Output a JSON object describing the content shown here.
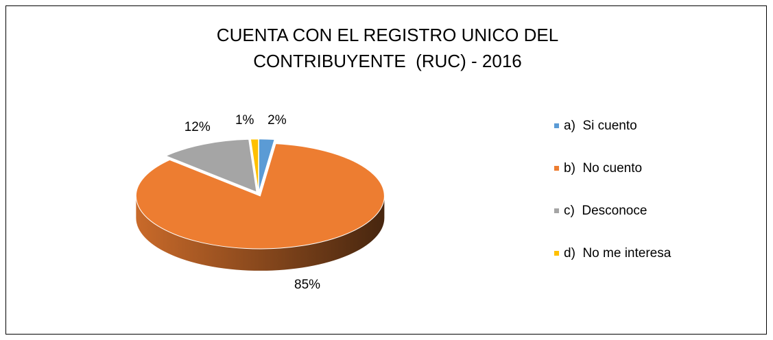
{
  "chart_data": {
    "type": "pie3d",
    "title": "CUENTA CON EL REGISTRO UNICO DEL CONTRIBUYENTE  (RUC) - 2016",
    "categories": [
      "a)  Si cuento",
      "b)  No cuento",
      "c)  Desconoce",
      "d)  No me interesa"
    ],
    "values": [
      2,
      85,
      12,
      1
    ],
    "value_labels": [
      "2%",
      "85%",
      "12%",
      "1%"
    ],
    "colors": [
      "#5b9bd5",
      "#ed7d31",
      "#a5a5a5",
      "#ffc000"
    ],
    "legend": "right"
  }
}
